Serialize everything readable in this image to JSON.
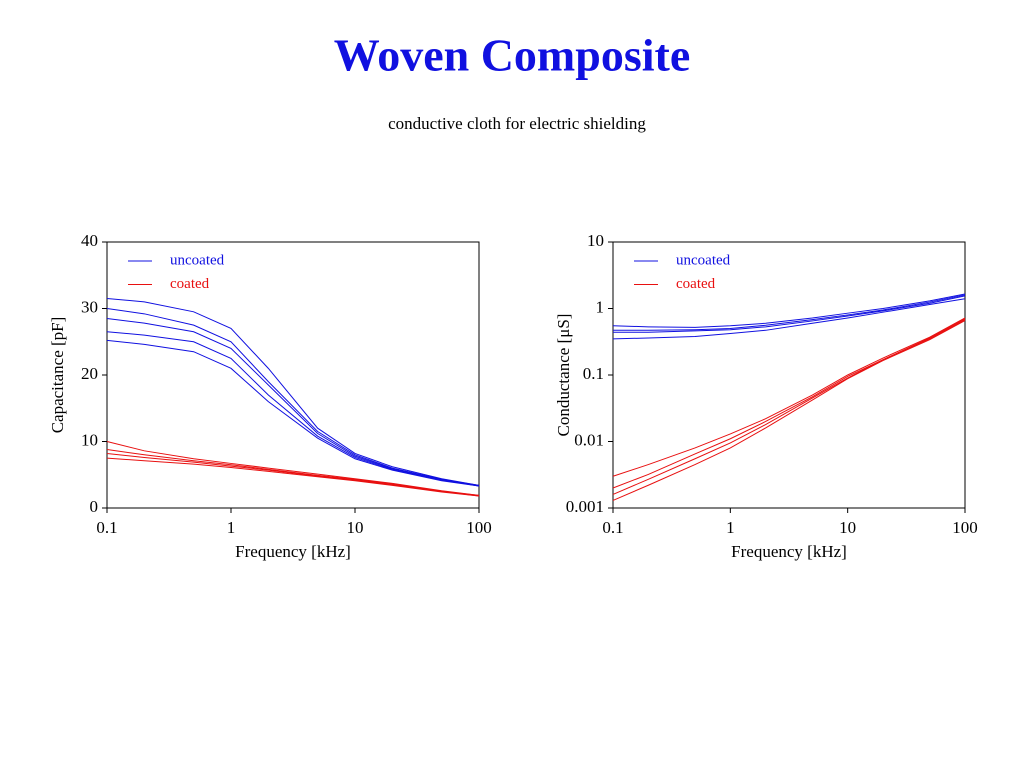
{
  "title": "Woven Composite",
  "subtitle": "conductive cloth for electric shielding",
  "chart_data": [
    {
      "type": "line",
      "xlabel": "Frequency [kHz]",
      "ylabel": "Capacitance [pF]",
      "xscale": "log",
      "xlim": [
        0.1,
        100
      ],
      "xticks": [
        0.1,
        1,
        10,
        100
      ],
      "ylim": [
        0,
        40
      ],
      "yticks": [
        0,
        10,
        20,
        30,
        40
      ],
      "grid": false,
      "legend": "upper left",
      "x": [
        0.1,
        0.2,
        0.5,
        1,
        2,
        5,
        10,
        20,
        50,
        100
      ],
      "series": [
        {
          "name": "uncoated",
          "color": "#1010e0",
          "values": [
            31.5,
            31,
            29.5,
            27,
            21,
            12,
            8.2,
            6.2,
            4.4,
            3.4
          ]
        },
        {
          "color": "#1010e0",
          "values": [
            30,
            29.2,
            27.5,
            25,
            19,
            11.5,
            8,
            6,
            4.3,
            3.4
          ]
        },
        {
          "color": "#1010e0",
          "values": [
            28.5,
            27.8,
            26.5,
            24,
            18.5,
            11.2,
            7.8,
            5.9,
            4.3,
            3.3
          ]
        },
        {
          "color": "#1010e0",
          "values": [
            26.5,
            26,
            25,
            22.5,
            17,
            10.8,
            7.6,
            5.8,
            4.2,
            3.3
          ]
        },
        {
          "color": "#1010e0",
          "values": [
            25.2,
            24.6,
            23.5,
            21,
            16,
            10.5,
            7.4,
            5.7,
            4.1,
            3.3
          ]
        },
        {
          "name": "coated",
          "color": "#e81010",
          "values": [
            10,
            8.6,
            7.4,
            6.7,
            6,
            5.1,
            4.4,
            3.7,
            2.6,
            1.9
          ]
        },
        {
          "color": "#e81010",
          "values": [
            8.8,
            8,
            7.1,
            6.5,
            5.8,
            4.9,
            4.3,
            3.6,
            2.5,
            1.9
          ]
        },
        {
          "color": "#e81010",
          "values": [
            8.2,
            7.6,
            6.9,
            6.3,
            5.7,
            4.8,
            4.2,
            3.5,
            2.5,
            1.8
          ]
        },
        {
          "color": "#e81010",
          "values": [
            7.5,
            7.1,
            6.6,
            6.1,
            5.5,
            4.7,
            4.1,
            3.4,
            2.4,
            1.8
          ]
        }
      ]
    },
    {
      "type": "line",
      "xlabel": "Frequency [kHz]",
      "ylabel": "Conductance [μS]",
      "xscale": "log",
      "yscale": "log",
      "xlim": [
        0.1,
        100
      ],
      "xticks": [
        0.1,
        1,
        10,
        100
      ],
      "ylim": [
        0.001,
        10
      ],
      "yticks": [
        0.001,
        0.01,
        0.1,
        1,
        10
      ],
      "grid": false,
      "legend": "upper left",
      "x": [
        0.1,
        0.2,
        0.5,
        1,
        2,
        5,
        10,
        20,
        50,
        100
      ],
      "series": [
        {
          "name": "uncoated",
          "color": "#1010e0",
          "values": [
            0.55,
            0.53,
            0.52,
            0.55,
            0.6,
            0.72,
            0.85,
            1.0,
            1.3,
            1.65
          ]
        },
        {
          "color": "#1010e0",
          "values": [
            0.47,
            0.47,
            0.48,
            0.5,
            0.56,
            0.68,
            0.8,
            0.95,
            1.25,
            1.6
          ]
        },
        {
          "color": "#1010e0",
          "values": [
            0.44,
            0.44,
            0.46,
            0.48,
            0.53,
            0.65,
            0.77,
            0.92,
            1.2,
            1.55
          ]
        },
        {
          "color": "#1010e0",
          "values": [
            0.35,
            0.36,
            0.38,
            0.42,
            0.47,
            0.6,
            0.72,
            0.88,
            1.15,
            1.4
          ]
        },
        {
          "name": "coated",
          "color": "#e81010",
          "values": [
            0.003,
            0.0045,
            0.008,
            0.013,
            0.022,
            0.05,
            0.1,
            0.18,
            0.37,
            0.72
          ]
        },
        {
          "color": "#e81010",
          "values": [
            0.002,
            0.0032,
            0.0065,
            0.011,
            0.02,
            0.047,
            0.095,
            0.17,
            0.36,
            0.7
          ]
        },
        {
          "color": "#e81010",
          "values": [
            0.0016,
            0.0027,
            0.0055,
            0.0095,
            0.018,
            0.045,
            0.09,
            0.17,
            0.35,
            0.68
          ]
        },
        {
          "color": "#e81010",
          "values": [
            0.0013,
            0.0022,
            0.0045,
            0.008,
            0.016,
            0.042,
            0.088,
            0.165,
            0.34,
            0.66
          ]
        }
      ]
    }
  ]
}
